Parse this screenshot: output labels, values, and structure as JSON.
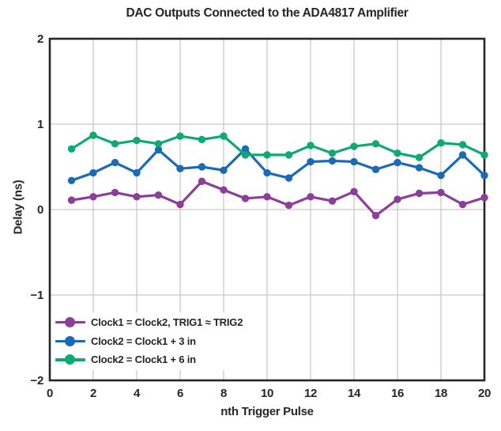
{
  "chart_data": {
    "type": "line",
    "title": "DAC Outputs Connected to the ADA4817 Amplifier",
    "xlabel": "nth Trigger Pulse",
    "ylabel": "Delay (ns)",
    "xlim": [
      0,
      20
    ],
    "ylim": [
      -2,
      2
    ],
    "xticks": [
      0,
      2,
      4,
      6,
      8,
      10,
      12,
      14,
      16,
      18,
      20
    ],
    "xtick_labels": [
      "0",
      "2",
      "4",
      "6",
      "8",
      "10",
      "12",
      "14",
      "16",
      "18",
      "20"
    ],
    "yticks": [
      -2,
      -1,
      0,
      1,
      2
    ],
    "ytick_labels": [
      "−2",
      "−1",
      "0",
      "1",
      "2"
    ],
    "grid": true,
    "legend_position": "lower-left-inside",
    "x": [
      1,
      2,
      3,
      4,
      5,
      6,
      7,
      8,
      9,
      10,
      11,
      12,
      13,
      14,
      15,
      16,
      17,
      18,
      19,
      20
    ],
    "series": [
      {
        "name": "Clock1 = Clock2, TRIG1 ≈ TRIG2",
        "color": "#8b3f98",
        "values": [
          0.11,
          0.15,
          0.2,
          0.15,
          0.17,
          0.06,
          0.33,
          0.23,
          0.13,
          0.15,
          0.05,
          0.15,
          0.1,
          0.21,
          -0.07,
          0.12,
          0.19,
          0.2,
          0.06,
          0.14
        ]
      },
      {
        "name": "Clock2 = Clock1 + 3 in",
        "color": "#1a6bb6",
        "values": [
          0.34,
          0.43,
          0.55,
          0.43,
          0.7,
          0.48,
          0.5,
          0.46,
          0.71,
          0.43,
          0.37,
          0.56,
          0.57,
          0.56,
          0.47,
          0.55,
          0.49,
          0.4,
          0.64,
          0.4
        ]
      },
      {
        "name": "Clock2 = Clock1 + 6 in",
        "color": "#0faa72",
        "values": [
          0.71,
          0.87,
          0.77,
          0.81,
          0.77,
          0.86,
          0.82,
          0.86,
          0.64,
          0.64,
          0.64,
          0.75,
          0.66,
          0.74,
          0.77,
          0.66,
          0.61,
          0.78,
          0.76,
          0.64
        ]
      }
    ]
  },
  "colors": {
    "background": "#ffffff",
    "text": "#262626",
    "axis": "#262626",
    "grid": "#c9c9c9"
  }
}
